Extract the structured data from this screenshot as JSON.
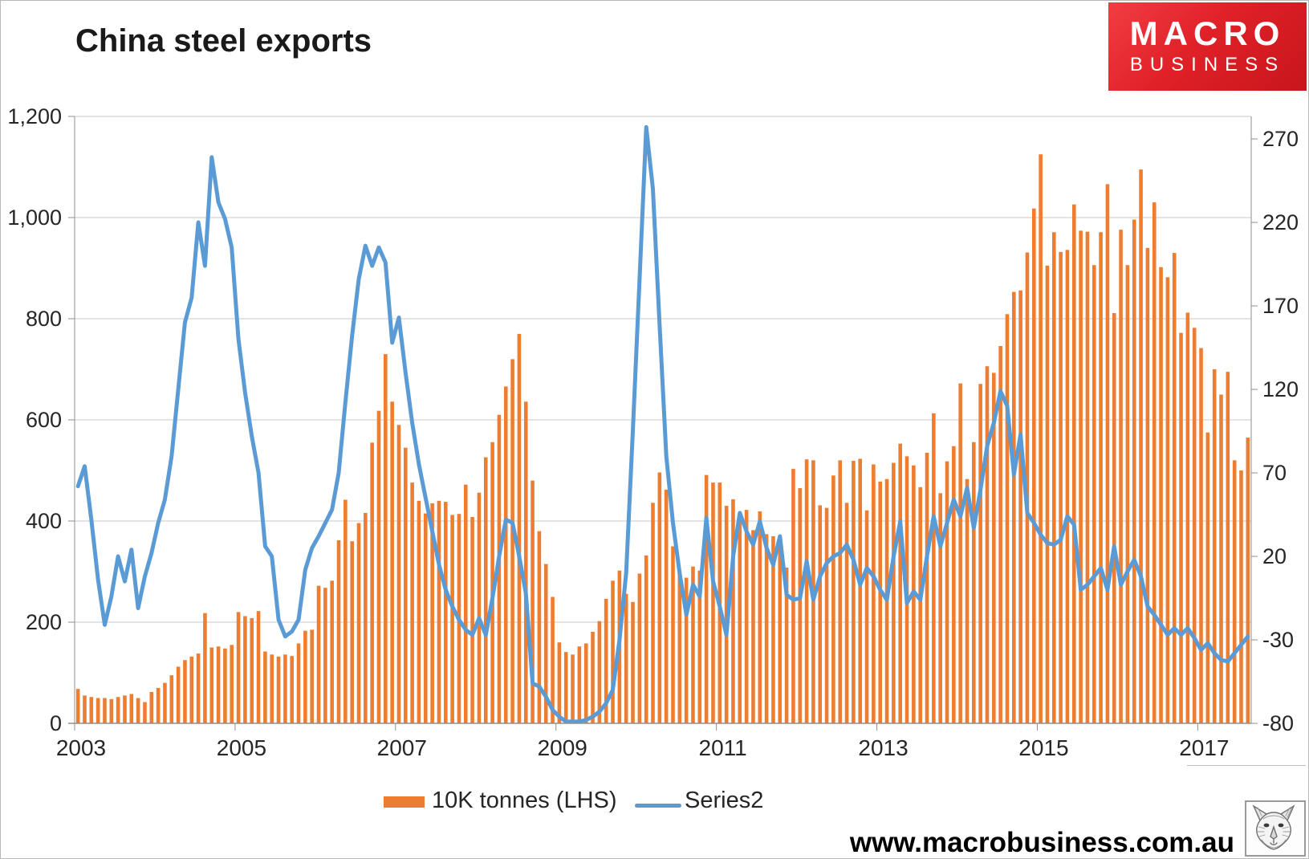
{
  "title": "China steel exports",
  "logo": {
    "line1": "MACRO",
    "line2": "BUSINESS"
  },
  "legend": {
    "bars_label": "10K tonnes (LHS)",
    "line_label": "Series2"
  },
  "footer": {
    "url": "www.macrobusiness.com.au"
  },
  "colors": {
    "bar": "#ED7D31",
    "line": "#5B9BD5",
    "grid": "#c9c9c9",
    "axis": "#8f8f8f",
    "text": "#262626",
    "logo_red": "#e02128"
  },
  "chart_data": {
    "type": "bar",
    "subtype": "monthly bars with overlaid line on secondary axis",
    "title": "China steel exports",
    "x_start_year": 2003,
    "x_start_month": 1,
    "months": 176,
    "x_tick_years": [
      "2003",
      "2005",
      "2007",
      "2009",
      "2011",
      "2013",
      "2015",
      "2017"
    ],
    "grid": "horizontal",
    "legend_position": "bottom",
    "y_left": {
      "min": 0,
      "max": 1200,
      "tick_step": 200,
      "tick_labels": [
        "1,200",
        "1,000",
        "800",
        "600",
        "400",
        "200",
        "0"
      ]
    },
    "y_right": {
      "min": -80,
      "max": 283,
      "tick_step": 50,
      "tick_labels": [
        "270",
        "220",
        "170",
        "120",
        "70",
        "20",
        "-30",
        "-80"
      ]
    },
    "series": [
      {
        "name": "10K tonnes (LHS)",
        "type": "bar",
        "axis": "left",
        "color": "#ED7D31",
        "values": [
          68,
          55,
          52,
          50,
          50,
          48,
          52,
          55,
          58,
          50,
          42,
          62,
          70,
          80,
          95,
          112,
          125,
          132,
          138,
          218,
          150,
          152,
          148,
          155,
          220,
          212,
          208,
          222,
          142,
          136,
          132,
          136,
          133,
          158,
          183,
          185,
          272,
          268,
          282,
          362,
          442,
          360,
          396,
          416,
          555,
          618,
          730,
          636,
          590,
          545,
          476,
          440,
          415,
          435,
          440,
          438,
          412,
          414,
          472,
          408,
          456,
          526,
          556,
          610,
          666,
          720,
          770,
          636,
          480,
          380,
          315,
          250,
          160,
          141,
          136,
          152,
          158,
          181,
          202,
          246,
          282,
          302,
          256,
          240,
          296,
          332,
          436,
          496,
          462,
          350,
          300,
          288,
          310,
          302,
          491,
          476,
          476,
          430,
          443,
          416,
          422,
          382,
          419,
          374,
          370,
          372,
          308,
          503,
          465,
          522,
          520,
          431,
          426,
          490,
          520,
          436,
          519,
          523,
          421,
          512,
          478,
          483,
          515,
          553,
          528,
          510,
          467,
          535,
          613,
          455,
          518,
          548,
          672,
          483,
          556,
          671,
          706,
          693,
          746,
          809,
          853,
          856,
          931,
          1018,
          1125,
          905,
          971,
          932,
          936,
          1026,
          974,
          972,
          906,
          971,
          1066,
          811,
          976,
          906,
          996,
          1095,
          940,
          1030,
          902,
          882,
          930,
          772,
          812,
          782,
          742,
          575,
          700,
          650,
          695,
          520,
          500,
          565
        ]
      },
      {
        "name": "Series2",
        "type": "line",
        "axis": "right",
        "color": "#5B9BD5",
        "values": [
          62,
          74,
          42,
          6,
          -21,
          -4,
          20,
          5,
          24,
          -11,
          8,
          22,
          40,
          54,
          80,
          120,
          160,
          175,
          220,
          194,
          259,
          232,
          222,
          205,
          150,
          118,
          92,
          70,
          26,
          20,
          -18,
          -28,
          -25,
          -18,
          12,
          25,
          32,
          40,
          48,
          70,
          112,
          152,
          186,
          206,
          194,
          205,
          196,
          148,
          163,
          130,
          100,
          75,
          55,
          35,
          15,
          0,
          -10,
          -18,
          -24,
          -27,
          -17,
          -27,
          -5,
          20,
          42,
          40,
          20,
          -2,
          -56,
          -58,
          -64,
          -72,
          -76,
          -79,
          -79,
          -79,
          -78,
          -76,
          -73,
          -68,
          -60,
          -30,
          10,
          95,
          185,
          277,
          240,
          159,
          80,
          40,
          10,
          -15,
          3,
          -4,
          43,
          5,
          -10,
          -27,
          20,
          46,
          35,
          27,
          41,
          25,
          15,
          32,
          -3,
          -6,
          -5,
          17,
          -6,
          8,
          16,
          20,
          22,
          27,
          18,
          3,
          13,
          8,
          0,
          -6,
          20,
          41,
          -8,
          -1,
          -6,
          20,
          44,
          26,
          40,
          54,
          44,
          61,
          37,
          60,
          86,
          100,
          119,
          110,
          69,
          93,
          46,
          40,
          33,
          28,
          27,
          30,
          44,
          39,
          0,
          3,
          8,
          13,
          0,
          26,
          3,
          11,
          18,
          8,
          -10,
          -15,
          -21,
          -27,
          -23,
          -27,
          -23,
          -29,
          -36,
          -32,
          -38,
          -42,
          -43,
          -38,
          -33,
          -28
        ]
      }
    ]
  }
}
